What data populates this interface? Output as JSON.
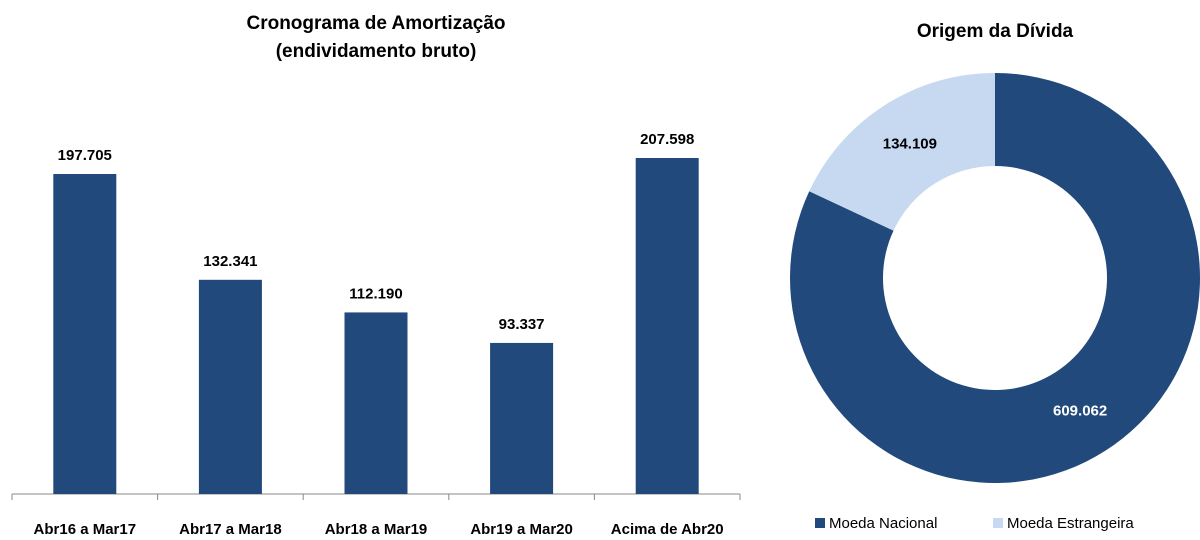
{
  "chart_data": [
    {
      "type": "bar",
      "title": "Cronograma de Amortização",
      "subtitle": "(endividamento bruto)",
      "categories": [
        "Abr16 a Mar17",
        "Abr17 a Mar18",
        "Abr18 a Mar19",
        "Abr19 a Mar20",
        "Acima de Abr20"
      ],
      "values": [
        197705,
        132341,
        112190,
        93337,
        207598
      ],
      "value_labels": [
        "197.705",
        "132.341",
        "112.190",
        "93.337",
        "207.598"
      ],
      "color": "#21497c"
    },
    {
      "type": "donut",
      "title": "Origem da Dívida",
      "categories": [
        "Moeda Nacional",
        "Moeda Estrangeira"
      ],
      "values": [
        609062,
        134109
      ],
      "value_labels": [
        "609.062",
        "134.109"
      ],
      "colors": [
        "#21497c",
        "#c6d9f1"
      ],
      "label_colors": [
        "#ffffff",
        "#000000"
      ],
      "legend": "bottom"
    }
  ]
}
